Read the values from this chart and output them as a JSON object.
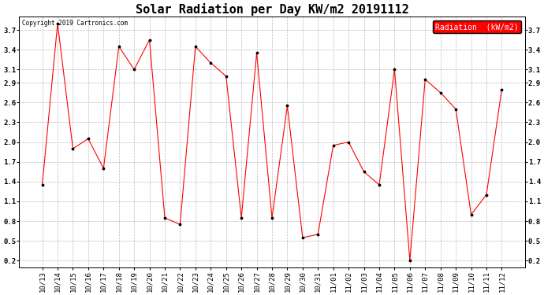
{
  "title": "Solar Radiation per Day KW/m2 20191112",
  "copyright_text": "Copyright 2019 Cartronics.com",
  "legend_label": "Radiation  (kW/m2)",
  "dates": [
    "10/13",
    "10/14",
    "10/15",
    "10/16",
    "10/17",
    "10/18",
    "10/19",
    "10/20",
    "10/21",
    "10/22",
    "10/23",
    "10/24",
    "10/25",
    "10/26",
    "10/27",
    "10/28",
    "10/29",
    "10/30",
    "10/31",
    "11/01",
    "11/02",
    "11/03",
    "11/04",
    "11/05",
    "11/06",
    "11/07",
    "11/08",
    "11/09",
    "11/10",
    "11/11",
    "11/12"
  ],
  "values": [
    1.35,
    3.8,
    1.9,
    2.05,
    1.6,
    3.45,
    3.1,
    3.55,
    0.85,
    0.75,
    3.45,
    3.2,
    3.0,
    0.85,
    3.35,
    0.85,
    2.55,
    0.55,
    0.6,
    1.95,
    2.0,
    1.55,
    1.35,
    3.1,
    0.2,
    2.95,
    2.75,
    2.5,
    0.9,
    1.2,
    2.8
  ],
  "line_color": "red",
  "marker": ".",
  "marker_color": "black",
  "background_color": "white",
  "grid_color": "#aaaaaa",
  "ylim": [
    0.1,
    3.9
  ],
  "yticks": [
    0.2,
    0.5,
    0.8,
    1.1,
    1.4,
    1.7,
    2.0,
    2.3,
    2.6,
    2.9,
    3.1,
    3.4,
    3.7
  ],
  "title_fontsize": 11,
  "tick_fontsize": 6.5,
  "legend_fontsize": 7,
  "legend_bg": "red",
  "legend_text_color": "white",
  "copyright_fontsize": 5.5
}
